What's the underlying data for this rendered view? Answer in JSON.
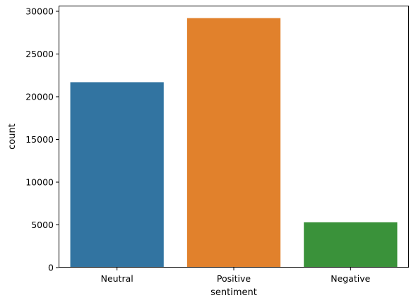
{
  "chart_data": {
    "type": "bar",
    "title": "",
    "xlabel": "sentiment",
    "ylabel": "count",
    "categories": [
      "Neutral",
      "Positive",
      "Negative"
    ],
    "values": [
      21700,
      29200,
      5300
    ],
    "colors": [
      "#3274a1",
      "#e1812c",
      "#3a923a"
    ],
    "ylim": [
      0,
      30660
    ],
    "yticks": [
      0,
      5000,
      10000,
      15000,
      20000,
      25000,
      30000
    ],
    "ytick_labels": [
      "0",
      "5000",
      "10000",
      "15000",
      "20000",
      "25000",
      "30000"
    ],
    "grid": false,
    "legend": "none"
  }
}
